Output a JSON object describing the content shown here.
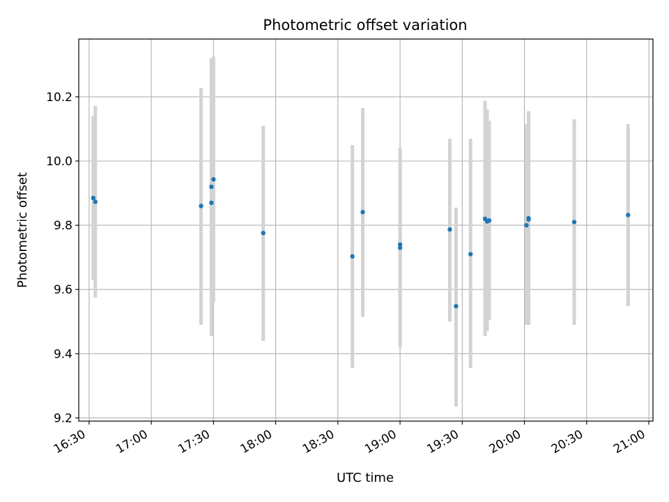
{
  "chart_data": {
    "type": "scatter",
    "title": "Photometric offset variation",
    "xlabel": "UTC time",
    "ylabel": "Photometric offset",
    "x_axis_kind": "time",
    "xlim": [
      "16:25",
      "21:02"
    ],
    "ylim": [
      9.19,
      10.38
    ],
    "x_ticks": [
      "16:30",
      "17:00",
      "17:30",
      "18:00",
      "18:30",
      "19:00",
      "19:30",
      "20:00",
      "20:30",
      "21:00"
    ],
    "y_ticks": [
      9.2,
      9.4,
      9.6,
      9.8,
      10.0,
      10.2
    ],
    "y_tick_labels": [
      "9.2",
      "9.4",
      "9.6",
      "9.8",
      "10.0",
      "10.2"
    ],
    "grid": true,
    "marker_color": "#1f77b4",
    "errorbar_color": "#d3d3d3",
    "series": [
      {
        "points": [
          {
            "t": "16:32",
            "y": 9.885,
            "lo": 9.63,
            "hi": 10.14
          },
          {
            "t": "16:33",
            "y": 9.873,
            "lo": 9.575,
            "hi": 10.172
          },
          {
            "t": "17:24",
            "y": 9.86,
            "lo": 9.49,
            "hi": 10.228
          },
          {
            "t": "17:29",
            "y": 9.92,
            "lo": 9.56,
            "hi": 10.32
          },
          {
            "t": "17:29",
            "y": 9.87,
            "lo": 9.455,
            "hi": 10.32
          },
          {
            "t": "17:30",
            "y": 9.943,
            "lo": 9.56,
            "hi": 10.325
          },
          {
            "t": "17:54",
            "y": 9.776,
            "lo": 9.44,
            "hi": 10.11
          },
          {
            "t": "18:37",
            "y": 9.703,
            "lo": 9.355,
            "hi": 10.05
          },
          {
            "t": "18:42",
            "y": 9.841,
            "lo": 9.515,
            "hi": 10.165
          },
          {
            "t": "19:00",
            "y": 9.74,
            "lo": 9.42,
            "hi": 10.04
          },
          {
            "t": "19:00",
            "y": 9.73,
            "lo": 9.42,
            "hi": 10.04
          },
          {
            "t": "19:24",
            "y": 9.787,
            "lo": 9.5,
            "hi": 10.07
          },
          {
            "t": "19:27",
            "y": 9.548,
            "lo": 9.235,
            "hi": 9.855
          },
          {
            "t": "19:34",
            "y": 9.71,
            "lo": 9.355,
            "hi": 10.07
          },
          {
            "t": "19:41",
            "y": 9.82,
            "lo": 9.455,
            "hi": 10.188
          },
          {
            "t": "19:42",
            "y": 9.812,
            "lo": 9.47,
            "hi": 10.16
          },
          {
            "t": "19:43",
            "y": 9.815,
            "lo": 9.505,
            "hi": 10.125
          },
          {
            "t": "20:01",
            "y": 9.8,
            "lo": 9.49,
            "hi": 10.115
          },
          {
            "t": "20:02",
            "y": 9.818,
            "lo": 9.49,
            "hi": 10.155
          },
          {
            "t": "20:02",
            "y": 9.822,
            "lo": 9.49,
            "hi": 10.155
          },
          {
            "t": "20:24",
            "y": 9.81,
            "lo": 9.49,
            "hi": 10.13
          },
          {
            "t": "20:50",
            "y": 9.832,
            "lo": 9.548,
            "hi": 10.115
          }
        ]
      }
    ]
  }
}
